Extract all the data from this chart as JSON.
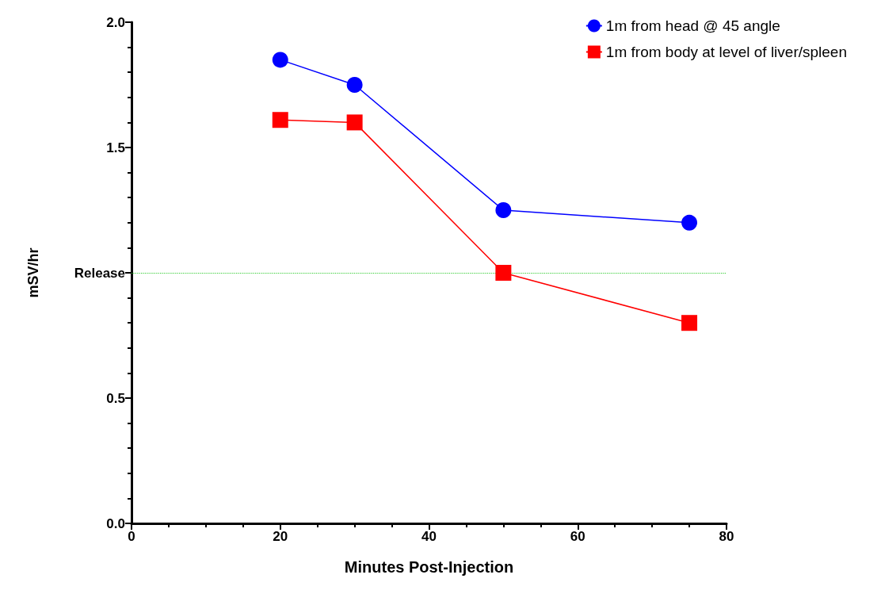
{
  "chart_data": {
    "type": "line",
    "xlabel": "Minutes Post-Injection",
    "ylabel": "mSV/hr",
    "xlim": [
      0,
      80
    ],
    "xticks": [
      0,
      20,
      40,
      60,
      80
    ],
    "ylim": [
      0,
      2
    ],
    "yticks": [
      {
        "value": 0,
        "label": "0.0"
      },
      {
        "value": 0.5,
        "label": "0.5"
      },
      {
        "value": 1,
        "label": "Release"
      },
      {
        "value": 1.5,
        "label": "1.5"
      },
      {
        "value": 2,
        "label": "2.0"
      }
    ],
    "legend": "top right",
    "grid": false,
    "ref_lines": [
      {
        "axis": "y",
        "value": 1,
        "color": "#33cc33",
        "line_style": "dotted"
      }
    ],
    "series": [
      {
        "name": "1m from head @ 45 angle",
        "color": "#0000ff",
        "marker": "circle",
        "x": [
          20,
          30,
          50,
          75
        ],
        "values": [
          1.85,
          1.75,
          1.25,
          1.2
        ]
      },
      {
        "name": "1m from body at level of liver/spleen",
        "color": "#ff0000",
        "marker": "square",
        "x": [
          20,
          30,
          50,
          75
        ],
        "values": [
          1.61,
          1.6,
          1.0,
          0.8
        ]
      }
    ]
  }
}
